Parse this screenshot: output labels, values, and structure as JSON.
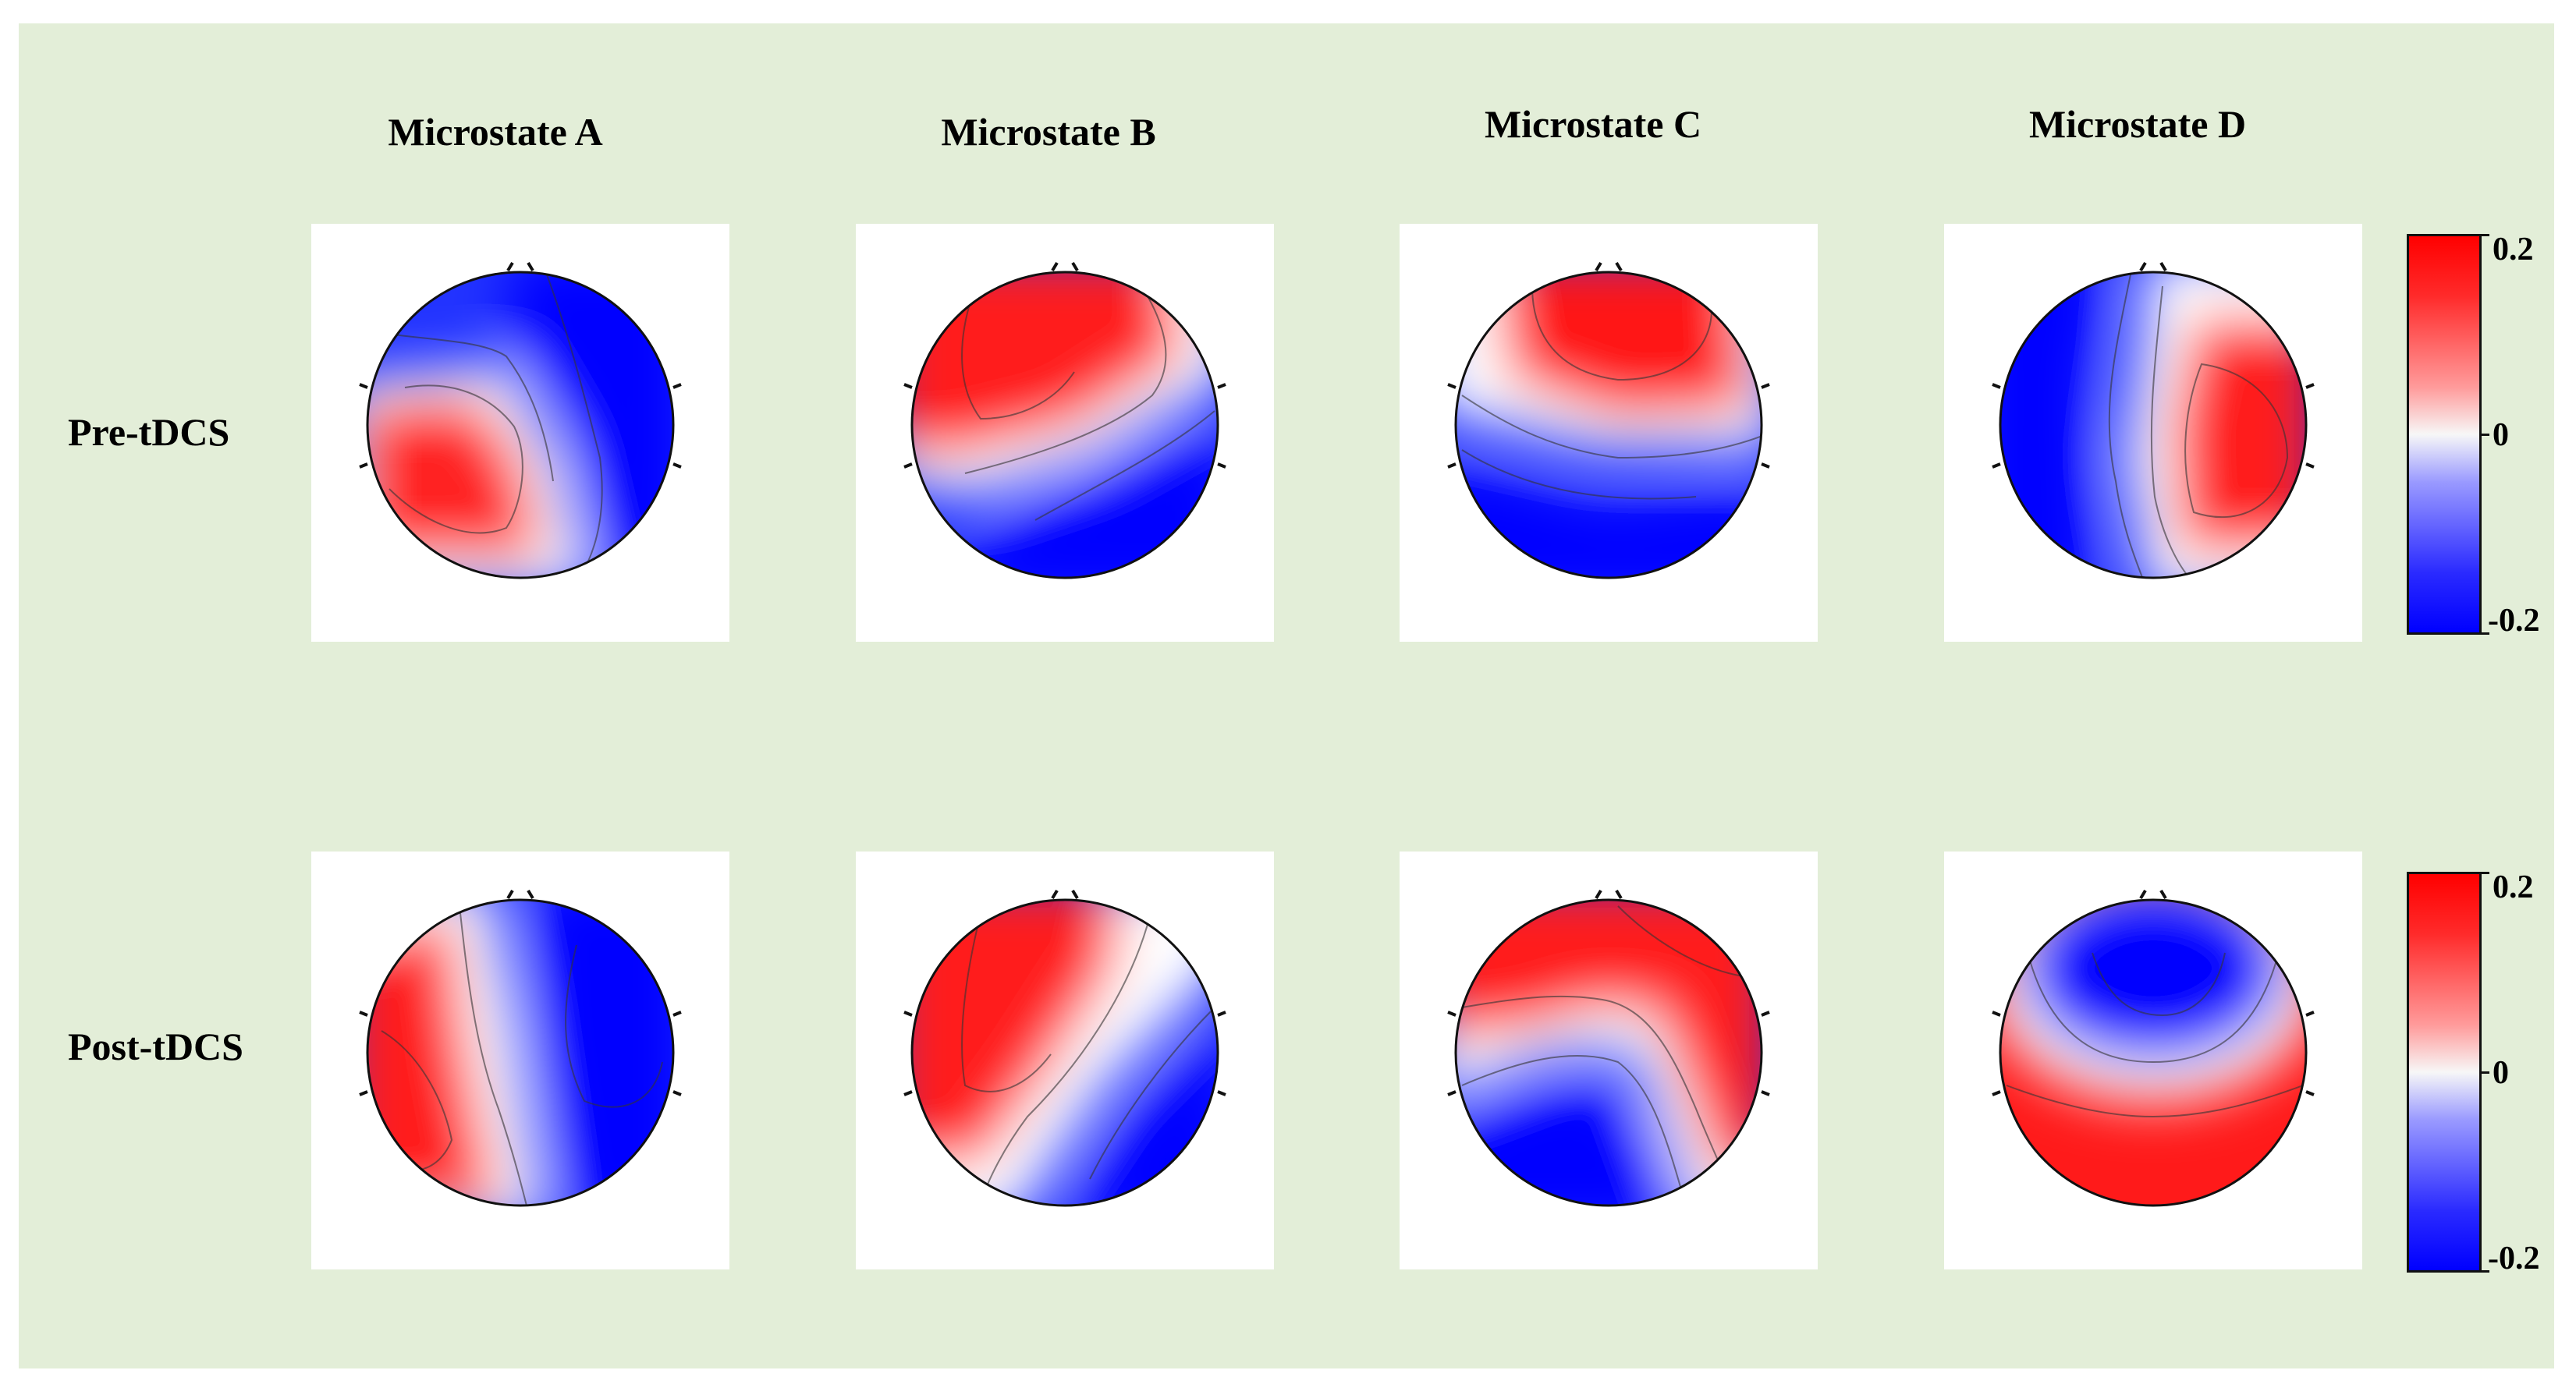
{
  "figure": {
    "columns": [
      {
        "id": "A",
        "title": "Microstate A"
      },
      {
        "id": "B",
        "title": "Microstate B"
      },
      {
        "id": "C",
        "title": "Microstate C"
      },
      {
        "id": "D",
        "title": "Microstate D"
      }
    ],
    "rows": [
      {
        "id": "pre",
        "label": "Pre-tDCS"
      },
      {
        "id": "post",
        "label": "Post-tDCS"
      }
    ],
    "colorbar": {
      "max_label": "0.2",
      "mid_label": "0",
      "min_label": "-0.2",
      "range": [
        -0.2,
        0.2
      ],
      "colors": {
        "positive": "#ff0000",
        "neutral": "#f7f7f7",
        "negative": "#0000ff"
      }
    },
    "maps": {
      "pre": {
        "A": {
          "positive_region": "left-temporal",
          "negative_region": "right / frontal-right"
        },
        "B": {
          "positive_region": "left-frontal",
          "negative_region": "right-posterior"
        },
        "C": {
          "positive_region": "frontal",
          "negative_region": "posterior"
        },
        "D": {
          "positive_region": "right-central",
          "negative_region": "left"
        }
      },
      "post": {
        "A": {
          "positive_region": "left-temporal",
          "negative_region": "right"
        },
        "B": {
          "positive_region": "left-frontal",
          "negative_region": "right-posterior"
        },
        "C": {
          "positive_region": "frontal",
          "negative_region": "posterior"
        },
        "D": {
          "positive_region": "posterior / peripheral",
          "negative_region": "frontal-central"
        }
      }
    }
  }
}
